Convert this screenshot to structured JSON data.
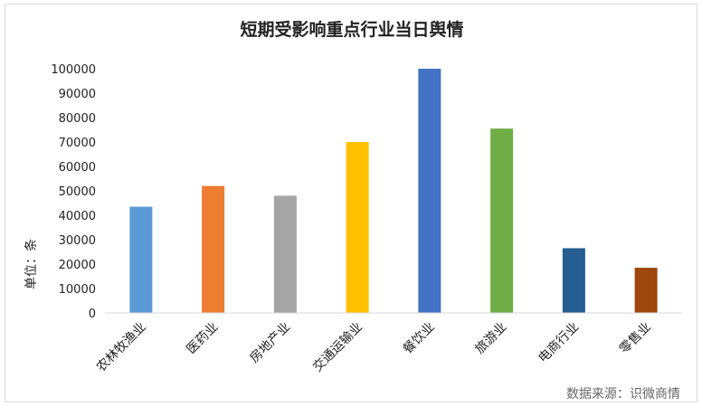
{
  "chart_data": {
    "type": "bar",
    "title": "短期受影响重点行业当日舆情",
    "ylabel": "单位：条",
    "xlabel": "",
    "categories": [
      "农林牧渔业",
      "医药业",
      "房地产业",
      "交通运输业",
      "餐饮业",
      "旅游业",
      "电商行业",
      "零售业"
    ],
    "values": [
      43500,
      52000,
      48000,
      70000,
      100000,
      75500,
      26500,
      18500
    ],
    "colors": [
      "#5b9bd5",
      "#ed7d31",
      "#a5a5a5",
      "#ffc000",
      "#4472c4",
      "#70ad47",
      "#255e91",
      "#9e480e"
    ],
    "ylim": [
      0,
      100000
    ],
    "yticks": [
      "0",
      "10000",
      "20000",
      "30000",
      "40000",
      "50000",
      "60000",
      "70000",
      "80000",
      "90000",
      "100000"
    ],
    "grid": false,
    "legend": "none"
  },
  "source_note": "数据来源：识微商情"
}
